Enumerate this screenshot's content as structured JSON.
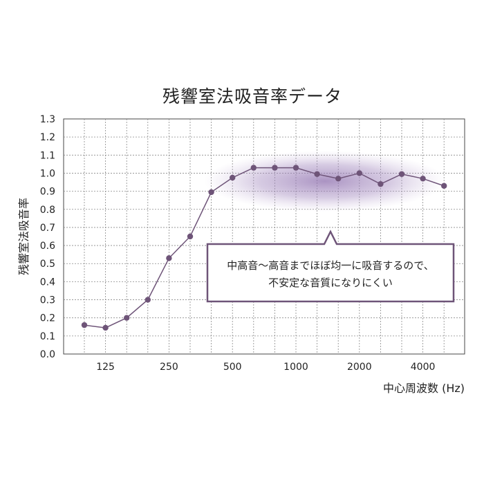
{
  "chart_data": {
    "type": "line",
    "title": "残響室法吸音率データ",
    "xlabel": "中心周波数 (Hz)",
    "ylabel": "残響室法吸音率",
    "ylim": [
      0,
      1.3
    ],
    "y_ticks": [
      "0.0",
      "0.1",
      "0.2",
      "0.3",
      "0.4",
      "0.5",
      "0.6",
      "0.7",
      "0.8",
      "0.9",
      "1.0",
      "1.1",
      "1.2",
      "1.3"
    ],
    "x_tick_labels": [
      "125",
      "250",
      "500",
      "1000",
      "2000",
      "4000"
    ],
    "x_labeled_index": [
      1,
      4,
      7,
      10,
      13,
      16
    ],
    "grid": true,
    "series": [
      {
        "name": "",
        "color": "#6e5478",
        "values": [
          0.16,
          0.145,
          0.2,
          0.3,
          0.53,
          0.65,
          0.895,
          0.975,
          1.03,
          1.03,
          1.03,
          0.995,
          0.97,
          1.0,
          0.94,
          0.995,
          0.97,
          0.93
        ]
      }
    ],
    "annotation": {
      "lines": [
        "中高音〜高音までほぼ均一に吸音するので、",
        "不安定な音質になりにくい"
      ],
      "highlight_color": "#9a7fb5",
      "border_color": "#6e5478"
    }
  }
}
